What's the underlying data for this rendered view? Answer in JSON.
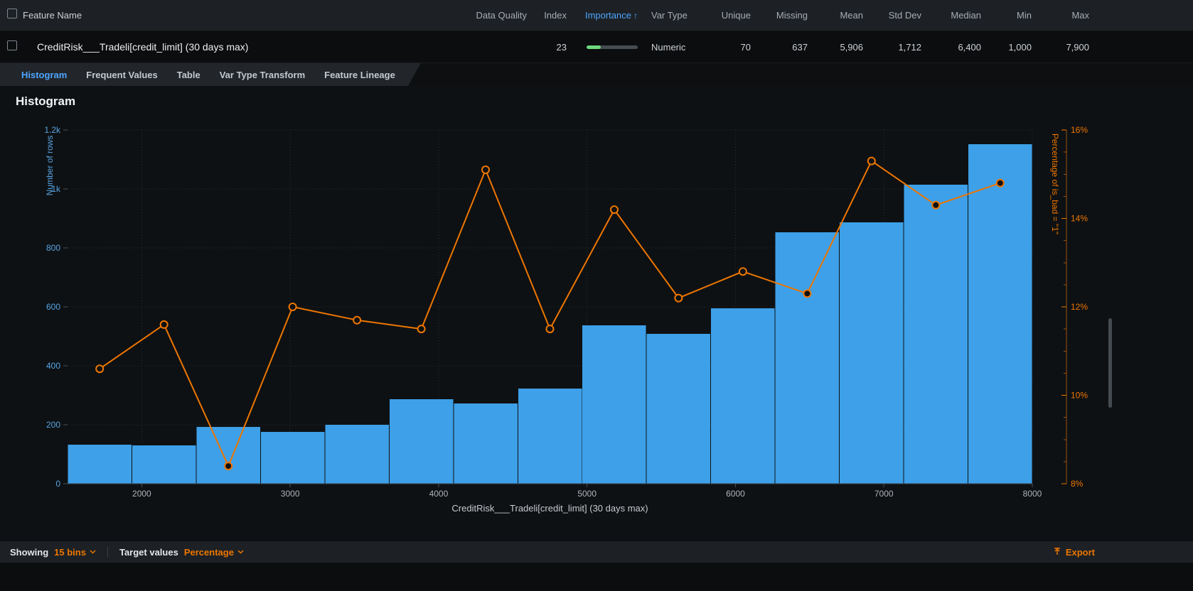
{
  "header": {
    "feature_name_label": "Feature Name",
    "columns": [
      "Data Quality",
      "Index",
      "Importance",
      "Var Type",
      "Unique",
      "Missing",
      "Mean",
      "Std Dev",
      "Median",
      "Min",
      "Max"
    ],
    "sort_arrow": "↑"
  },
  "feature_row": {
    "name": "CreditRisk___Tradeli[credit_limit] (30 days max)",
    "data_quality": "",
    "index": "23",
    "importance_fill_pct": 28,
    "var_type": "Numeric",
    "unique": "70",
    "missing": "637",
    "mean": "5,906",
    "std_dev": "1,712",
    "median": "6,400",
    "min": "1,000",
    "max": "7,900"
  },
  "tabs": [
    {
      "label": "Histogram",
      "active": true
    },
    {
      "label": "Frequent Values",
      "active": false
    },
    {
      "label": "Table",
      "active": false
    },
    {
      "label": "Var Type Transform",
      "active": false
    },
    {
      "label": "Feature Lineage",
      "active": false
    }
  ],
  "section_title": "Histogram",
  "chart_data": {
    "type": "histogram+line",
    "title": "Histogram",
    "xlabel": "CreditRisk___Tradeli[credit_limit] (30 days max)",
    "ylabel_left": "Number of rows",
    "ylabel_right": "Percentage of is_bad = \"1\"",
    "x_min": 1500,
    "x_max": 8000,
    "bin_count": 15,
    "x_ticks": [
      2000,
      3000,
      4000,
      5000,
      6000,
      7000,
      8000
    ],
    "left_max": 1200,
    "left_ticks": [
      0,
      200,
      400,
      600,
      800,
      1000,
      1200
    ],
    "left_tick_labels": [
      "0",
      "200",
      "400",
      "600",
      "800",
      "1k",
      "1.2k"
    ],
    "right_min": 8,
    "right_max": 16,
    "right_ticks": [
      8,
      10,
      12,
      14,
      16
    ],
    "right_tick_labels": [
      "8%",
      "10%",
      "12%",
      "14%",
      "16%"
    ],
    "bars": [
      133,
      130,
      193,
      176,
      200,
      287,
      272,
      323,
      537,
      509,
      595,
      853,
      887,
      1015,
      1152
    ],
    "line": [
      10.6,
      11.6,
      8.4,
      12.0,
      11.7,
      11.5,
      15.1,
      11.5,
      14.2,
      12.2,
      12.8,
      12.3,
      15.3,
      14.3,
      14.8
    ],
    "bar_color": "#3da0e8",
    "line_color": "#ee7600",
    "grid": true,
    "legend": false
  },
  "footer": {
    "showing_label": "Showing",
    "bins_value": "15 bins",
    "target_label": "Target values",
    "target_value": "Percentage",
    "export_label": "Export"
  },
  "colors": {
    "accent_blue": "#4da6ff",
    "accent_orange": "#ee7600",
    "bar_blue": "#3da0e8",
    "importance_green": "#6fd97e"
  }
}
